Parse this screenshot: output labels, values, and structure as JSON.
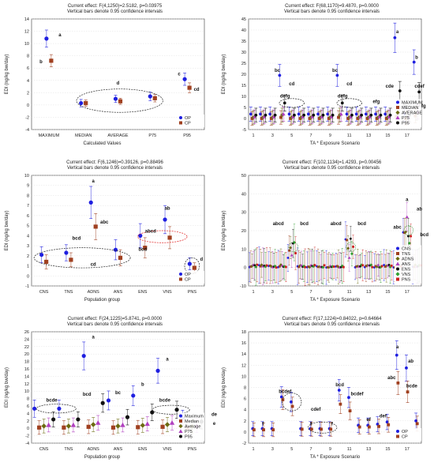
{
  "chart_data": [
    {
      "type": "scatter",
      "title": "Current effect: F(4,1250)=2.5182, p=0.03975",
      "subtitle": "Vertical bars denote 0.95 confidence intervals",
      "xlabel": "Calculated Values",
      "ylabel": "EDI (ng/kg bw/day)",
      "ylim": [
        -4,
        14
      ],
      "yticks": [
        -4,
        -2,
        0,
        2,
        4,
        6,
        8,
        10,
        12,
        14
      ],
      "categories": [
        "MAXIMUM",
        "MEDIAN",
        "AVERAGE",
        "P75",
        "P95"
      ],
      "series": [
        {
          "name": "OP",
          "color": "#1f1fe0",
          "marker": "circle",
          "values": [
            10.8,
            0.3,
            1.0,
            1.4,
            4.2
          ],
          "ci": [
            1.4,
            0.6,
            0.6,
            0.7,
            1.0
          ]
        },
        {
          "name": "CP",
          "color": "#a04020",
          "marker": "square",
          "values": [
            7.2,
            0.3,
            0.6,
            1.1,
            2.8
          ],
          "ci": [
            1.0,
            0.5,
            0.5,
            0.6,
            0.8
          ]
        }
      ],
      "annotations": [
        {
          "text": "a",
          "cat": 0,
          "y": 11.2,
          "dx": 14
        },
        {
          "text": "b",
          "cat": 0,
          "y": 6.8,
          "dx": -10
        },
        {
          "text": "d",
          "cat": 2,
          "y": 3.3,
          "dx": 0
        },
        {
          "text": "c",
          "cat": 4,
          "y": 4.8,
          "dx": -10
        },
        {
          "text": "cd",
          "cat": 4,
          "y": 2.3,
          "dx": 12
        }
      ],
      "ellipses": [
        {
          "cat1": 0.8,
          "cat2": 3.3,
          "y": 0.7,
          "ry": 1.9
        }
      ],
      "legend": "bottom-right"
    },
    {
      "type": "scatter",
      "title": "Current effect: F(68,1170)=9.4870, p=0.0000",
      "subtitle": "Vertical bars denote 0.95 confidence intervals",
      "xlabel": "TA * Exposure Scenario",
      "ylabel": "EDI (ng/kg bw/day)",
      "ylim": [
        -5,
        45
      ],
      "yticks": [
        -5,
        0,
        5,
        10,
        15,
        20,
        25,
        30,
        35,
        40,
        45
      ],
      "xticks": [
        "1",
        "3",
        "5",
        "7",
        "9",
        "11",
        "13",
        "15",
        "17"
      ],
      "n": 18,
      "series": [
        {
          "name": "MAXIMUM",
          "color": "#1f1fe0",
          "marker": "circle",
          "values": [
            2,
            2,
            2,
            19.5,
            2,
            2,
            2,
            2,
            2,
            19.5,
            2,
            2,
            2,
            2,
            2,
            36.5,
            2,
            25.5
          ]
        },
        {
          "name": "MEDIAN",
          "color": "#a04020",
          "marker": "square",
          "values": [
            0,
            0,
            0,
            0.5,
            0,
            0,
            0,
            0,
            0,
            0.5,
            0,
            0,
            0,
            0,
            0,
            0.8,
            0,
            1.2
          ]
        },
        {
          "name": "AVERAGE",
          "color": "#6b6b10",
          "marker": "diamond",
          "values": [
            0.5,
            0.5,
            0.5,
            1.5,
            0.5,
            0.5,
            0.5,
            0.5,
            0.5,
            1.5,
            0.5,
            0.5,
            0.5,
            0.5,
            0.5,
            2.0,
            0.5,
            2.5
          ]
        },
        {
          "name": "P75",
          "color": "#b040c0",
          "marker": "triangle",
          "values": [
            0.8,
            0.8,
            0.8,
            2.0,
            0.8,
            0.8,
            0.8,
            0.8,
            0.8,
            2.0,
            0.8,
            0.8,
            0.8,
            0.8,
            0.8,
            2.5,
            0.8,
            3.0
          ]
        },
        {
          "name": "P95",
          "color": "#111111",
          "marker": "circle",
          "values": [
            1.5,
            1.5,
            1.5,
            7.0,
            1.5,
            1.5,
            1.5,
            1.5,
            1.5,
            7.0,
            1.5,
            1.5,
            1.5,
            1.5,
            1.5,
            12.5,
            1.5,
            12.0
          ]
        }
      ],
      "annotations": [
        {
          "text": "a",
          "x": 16,
          "y": 38.5
        },
        {
          "text": "b",
          "x": 18,
          "y": 27
        },
        {
          "text": "bc",
          "x": 3.5,
          "y": 21
        },
        {
          "text": "bc",
          "x": 9.5,
          "y": 21
        },
        {
          "text": "cd",
          "x": 5,
          "y": 15
        },
        {
          "text": "cd",
          "x": 11,
          "y": 15
        },
        {
          "text": "cde",
          "x": 15.2,
          "y": 14
        },
        {
          "text": "cdef",
          "x": 18.3,
          "y": 14
        },
        {
          "text": "defg",
          "x": 4.3,
          "y": 9.5
        },
        {
          "text": "defg",
          "x": 10.3,
          "y": 9.5
        },
        {
          "text": "efg",
          "x": 13.8,
          "y": 7
        },
        {
          "text": "fg",
          "x": 16.8,
          "y": 5
        },
        {
          "text": "efg",
          "x": 18.6,
          "y": 5
        },
        {
          "text": "g",
          "x": 20.2,
          "y": 2
        }
      ],
      "ellipses": [
        {
          "cx": 5,
          "y": 7,
          "rx": 1.3,
          "ry": 2
        },
        {
          "cx": 11,
          "y": 7,
          "rx": 1.3,
          "ry": 2
        }
      ],
      "legend": "bottom-right"
    },
    {
      "type": "scatter",
      "title": "Current effect: F(6,1246)=0.39126, p=0.88496",
      "subtitle": "Vertical bars denote 0.95 confidence intervals",
      "xlabel": "Population group",
      "ylabel": "EDI (ng/kg bw/day)",
      "ylim": [
        -1,
        10
      ],
      "yticks": [
        -1,
        0,
        1,
        2,
        3,
        4,
        5,
        6,
        7,
        8,
        9,
        10
      ],
      "categories": [
        "CNS",
        "TNS",
        "ADNS",
        "ANS",
        "ENS",
        "VNS",
        "PNS"
      ],
      "series": [
        {
          "name": "OP",
          "color": "#1f1fe0",
          "marker": "circle",
          "values": [
            2.1,
            2.3,
            7.3,
            2.6,
            4.0,
            5.6,
            1.2
          ],
          "ci": [
            0.8,
            0.8,
            1.6,
            1.0,
            1.2,
            1.4,
            0.6
          ]
        },
        {
          "name": "CP",
          "color": "#a04020",
          "marker": "square",
          "values": [
            1.4,
            1.6,
            4.9,
            1.8,
            2.8,
            3.8,
            0.8
          ],
          "ci": [
            0.7,
            0.7,
            1.3,
            0.8,
            1.0,
            1.1,
            0.5
          ]
        }
      ],
      "annotations": [
        {
          "text": "a",
          "cat": 2,
          "y": 9.3,
          "dx": 0
        },
        {
          "text": "abc",
          "cat": 2,
          "y": 5.2,
          "dx": 14
        },
        {
          "text": "bcd",
          "cat": 1,
          "y": 3.6,
          "dx": 10
        },
        {
          "text": "cd",
          "cat": 2,
          "y": 1.0,
          "dx": 0
        },
        {
          "text": "abcd",
          "cat": 4,
          "y": 4.3,
          "dx": 10
        },
        {
          "text": "bcd",
          "cat": 4,
          "y": 2.5,
          "dx": 0
        },
        {
          "text": "ab",
          "cat": 5,
          "y": 6.6,
          "dx": 0
        },
        {
          "text": "d",
          "cat": 6,
          "y": 1.5,
          "dx": 12
        }
      ],
      "ellipses": [
        {
          "cat1": -0.4,
          "cat2": 3.5,
          "y": 1.8,
          "ry": 1.0,
          "stroke": "#222"
        },
        {
          "cat1": 3.8,
          "cat2": 5.8,
          "y": 3.9,
          "ry": 0.6,
          "stroke": "#e02020"
        },
        {
          "cat1": 5.7,
          "cat2": 6.3,
          "y": 1.0,
          "ry": 0.8,
          "stroke": "#222"
        }
      ],
      "legend": "bottom-right"
    },
    {
      "type": "scatter",
      "title": "Current effect: F(102,1134)=1.4293, p=0.00456",
      "subtitle": "Vertical bars denote 0.95 confidence intervals",
      "xlabel": "TA * Exposure Scenario",
      "ylabel": "EDI (ng/kg bw/day)",
      "ylim": [
        -10,
        50
      ],
      "yticks": [
        -10,
        0,
        10,
        20,
        30,
        40,
        50
      ],
      "xticks": [
        "1",
        "3",
        "5",
        "7",
        "9",
        "11",
        "13",
        "15",
        "17"
      ],
      "n": 18,
      "series": [
        {
          "name": "CNS",
          "color": "#1f1fe0",
          "marker": "circle"
        },
        {
          "name": "TNS",
          "color": "#a04020",
          "marker": "square"
        },
        {
          "name": "ADNS",
          "color": "#6b6b10",
          "marker": "diamond"
        },
        {
          "name": "ANS",
          "color": "#b040c0",
          "marker": "triangle"
        },
        {
          "name": "ENS",
          "color": "#111111",
          "marker": "circle"
        },
        {
          "name": "VNS",
          "color": "#30a030",
          "marker": "diamond"
        },
        {
          "name": "PNS",
          "color": "#cc2020",
          "marker": "square"
        }
      ],
      "peaks": [
        {
          "x": 5,
          "value": 17
        },
        {
          "x": 11,
          "value": 17
        },
        {
          "x": 17,
          "value": 31
        }
      ],
      "annotations": [
        {
          "text": "a",
          "x": 17,
          "y": 36
        },
        {
          "text": "ab",
          "x": 18.3,
          "y": 31
        },
        {
          "text": "abcd",
          "x": 3.6,
          "y": 23
        },
        {
          "text": "bcd",
          "x": 6.3,
          "y": 23
        },
        {
          "text": "abcd",
          "x": 9.6,
          "y": 23
        },
        {
          "text": "bcd",
          "x": 12.3,
          "y": 23
        },
        {
          "text": "abc",
          "x": 16,
          "y": 21
        },
        {
          "text": "bcd",
          "x": 18.8,
          "y": 17
        },
        {
          "text": "cd",
          "x": 20.2,
          "y": 7
        },
        {
          "text": "d",
          "x": 20.2,
          "y": 1
        }
      ],
      "legend": "bottom-right"
    },
    {
      "type": "scatter",
      "title": "Current effect: F(24,1225)=5.8741, p=0.0000",
      "subtitle": "Vertical bars denote 0.95 confidence intervals",
      "xlabel": "Population group",
      "ylabel": "EDI (ng/kg bw/day)",
      "ylim": [
        -4,
        26
      ],
      "yticks": [
        -4,
        -2,
        0,
        2,
        4,
        6,
        8,
        10,
        12,
        14,
        16,
        18,
        20,
        22,
        24,
        26
      ],
      "categories": [
        "CNS",
        "TNS",
        "ADNS",
        "ANS",
        "ENS",
        "VNS",
        "PNS"
      ],
      "series": [
        {
          "name": "Maximum",
          "color": "#1f1fe0",
          "marker": "circle",
          "values": [
            5.3,
            5.3,
            19.5,
            7.5,
            8.8,
            15.5,
            2.8
          ]
        },
        {
          "name": "Median",
          "color": "#a04020",
          "marker": "square",
          "values": [
            0.2,
            0.2,
            0.4,
            0.2,
            0.3,
            0.4,
            0.1
          ]
        },
        {
          "name": "Average",
          "color": "#6b6b10",
          "marker": "diamond",
          "values": [
            0.6,
            0.6,
            1.0,
            0.6,
            0.8,
            1.0,
            0.5
          ]
        },
        {
          "name": "P75",
          "color": "#b040c0",
          "marker": "triangle",
          "values": [
            0.9,
            0.9,
            1.5,
            0.9,
            1.2,
            1.5,
            0.7
          ]
        },
        {
          "name": "P95",
          "color": "#111111",
          "marker": "circle",
          "values": [
            2.4,
            2.4,
            6.8,
            3.0,
            4.3,
            5.0,
            1.8
          ]
        }
      ],
      "annotations": [
        {
          "text": "a",
          "cat": 2,
          "y": 24.2,
          "dx": 0
        },
        {
          "text": "a",
          "cat": 5,
          "y": 18.2,
          "dx": 0
        },
        {
          "text": "b",
          "cat": 4,
          "y": 11.4,
          "dx": 0
        },
        {
          "text": "bcd",
          "cat": 2,
          "y": 8.8,
          "dx": -8
        },
        {
          "text": "bc",
          "cat": 3,
          "y": 9.2,
          "dx": 0
        },
        {
          "text": "bcde",
          "cat": 0,
          "y": 7.2,
          "dx": 10
        },
        {
          "text": "bcde",
          "cat": 4.9,
          "y": 7.2,
          "dx": 0
        },
        {
          "text": "de",
          "cat": 6.9,
          "y": 3.3,
          "dx": 0
        },
        {
          "text": "e",
          "cat": 6.9,
          "y": 0.9,
          "dx": 0
        }
      ],
      "ellipses": [
        {
          "cat1": -0.3,
          "cat2": 1.3,
          "y": 5.3,
          "ry": 1.2
        },
        {
          "cat1": 4.4,
          "cat2": 5.9,
          "y": 5.0,
          "ry": 1.2
        }
      ],
      "legend": "bottom-right"
    },
    {
      "type": "scatter",
      "title": "Current effect: F(17,1224)=0.84022, p=0.64664",
      "subtitle": "Vertical bars denote 0.95 confidence intervals",
      "xlabel": "TA * Exposure Scenario",
      "ylabel": "EDI (ng/kg bw/day)",
      "ylim": [
        -2,
        18
      ],
      "yticks": [
        -2,
        0,
        2,
        4,
        6,
        8,
        10,
        12,
        14,
        16,
        18
      ],
      "xticks": [
        "1",
        "3",
        "5",
        "7",
        "9",
        "11",
        "13",
        "15",
        "17"
      ],
      "n": 18,
      "series": [
        {
          "name": "OP",
          "color": "#1f1fe0",
          "marker": "circle",
          "values": [
            0.6,
            0.6,
            0.6,
            6.3,
            5.4,
            0.6,
            0.6,
            0.6,
            0.6,
            7.5,
            6.2,
            1.2,
            1.2,
            1.4,
            1.8,
            13.8,
            11.5,
            2.0
          ]
        },
        {
          "name": "CP",
          "color": "#a04020",
          "marker": "square",
          "values": [
            0.4,
            0.4,
            0.4,
            5.8,
            4.6,
            0.5,
            0.5,
            0.5,
            0.5,
            5.0,
            3.8,
            0.9,
            0.9,
            1.0,
            1.3,
            8.8,
            7.2,
            1.5
          ]
        }
      ],
      "annotations": [
        {
          "text": "a",
          "x": 16,
          "y": 15
        },
        {
          "text": "ab",
          "x": 17.4,
          "y": 12.5
        },
        {
          "text": "abc",
          "x": 15.4,
          "y": 9.5
        },
        {
          "text": "bcde",
          "x": 17.5,
          "y": 8
        },
        {
          "text": "bcdef",
          "x": 4.3,
          "y": 7
        },
        {
          "text": "bcd",
          "x": 10,
          "y": 8.2
        },
        {
          "text": "bcdef",
          "x": 11.8,
          "y": 6.6
        },
        {
          "text": "cdef",
          "x": 7.5,
          "y": 3.8
        },
        {
          "text": "def",
          "x": 14.5,
          "y": 2.6
        },
        {
          "text": "ef",
          "x": 13,
          "y": 2
        },
        {
          "text": "f",
          "x": 2,
          "y": 1.2
        },
        {
          "text": "f",
          "x": 7,
          "y": 1.2
        },
        {
          "text": "f",
          "x": 9.2,
          "y": 1.2
        }
      ],
      "ellipses": [
        {
          "cx": 5,
          "y": 5.4,
          "rx": 1.0,
          "ry": 1.6
        },
        {
          "cx": 8.2,
          "y": 0.8,
          "rx": 1.5,
          "ry": 1.0
        }
      ],
      "legend": "bottom-right"
    }
  ]
}
